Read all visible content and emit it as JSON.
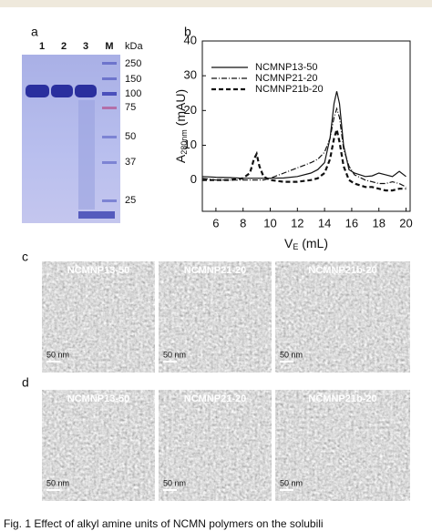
{
  "panels": {
    "a": "a",
    "b": "b",
    "c": "c",
    "d": "d"
  },
  "gel": {
    "lanes": [
      "1",
      "2",
      "3",
      "M"
    ],
    "unit": "kDa",
    "markers": [
      "250",
      "150",
      "100",
      "75",
      "50",
      "37",
      "25"
    ]
  },
  "chart_data": {
    "type": "line",
    "x": [
      5,
      6,
      7,
      8,
      8.5,
      8.8,
      9,
      9.2,
      9.5,
      10,
      11,
      12,
      13,
      13.5,
      14,
      14.4,
      14.7,
      14.9,
      15.1,
      15.4,
      15.8,
      16.2,
      17,
      17.5,
      18,
      18.5,
      19,
      19.5,
      20
    ],
    "series": [
      {
        "name": "NCMNP13-50",
        "color": "#111111",
        "dash": "none",
        "width": 1.2,
        "values": [
          1,
          0.8,
          0.7,
          0.5,
          0.5,
          0.5,
          0.5,
          0.5,
          0.5,
          0.5,
          0.6,
          1,
          2,
          3,
          5,
          12,
          22,
          25.5,
          22,
          10,
          3,
          2,
          1,
          1.2,
          2,
          1.5,
          1,
          2.5,
          1
        ]
      },
      {
        "name": "NCMNP21-20",
        "color": "#111111",
        "dash": "6,2,1,2",
        "width": 1.2,
        "values": [
          0.5,
          0,
          0,
          0,
          0,
          0,
          0,
          0,
          0,
          0.5,
          2,
          3.5,
          5,
          6,
          8,
          12,
          18,
          20.5,
          18,
          9,
          4,
          1.5,
          0,
          -0.5,
          -1,
          -1,
          -0.5,
          -1,
          -2
        ]
      },
      {
        "name": "NCMNP21b-20",
        "color": "#111111",
        "dash": "5,3",
        "width": 2.2,
        "values": [
          0,
          0,
          0,
          0.5,
          2,
          6,
          7.5,
          4,
          1,
          0,
          -0.5,
          -0.5,
          0,
          0.5,
          2,
          6,
          12,
          14.5,
          11,
          4,
          0,
          -1,
          -2,
          -2,
          -2.5,
          -3,
          -3,
          -2.5,
          -2.5
        ]
      }
    ],
    "xlim": [
      5,
      20.3
    ],
    "xticks": [
      6,
      8,
      10,
      12,
      14,
      16,
      18,
      20
    ],
    "ylim": [
      -9,
      40
    ],
    "yticks": [
      0,
      10,
      20,
      30,
      40
    ],
    "ylabel_parts": [
      "A",
      "280nm",
      " (mAU)"
    ],
    "xlabel_parts": [
      "V",
      "E",
      " (mL)"
    ]
  },
  "em": {
    "c": [
      "NCMNP13-50",
      "NCMNP21-20",
      "NCMNP21b-20"
    ],
    "d": [
      "NCMNP13-50",
      "NCMNP21-20",
      "NCMNP21b-20"
    ],
    "scale": "50 nm"
  },
  "caption": "Fig. 1   Effect of alkyl amine units of NCMN polymers on the solubili"
}
